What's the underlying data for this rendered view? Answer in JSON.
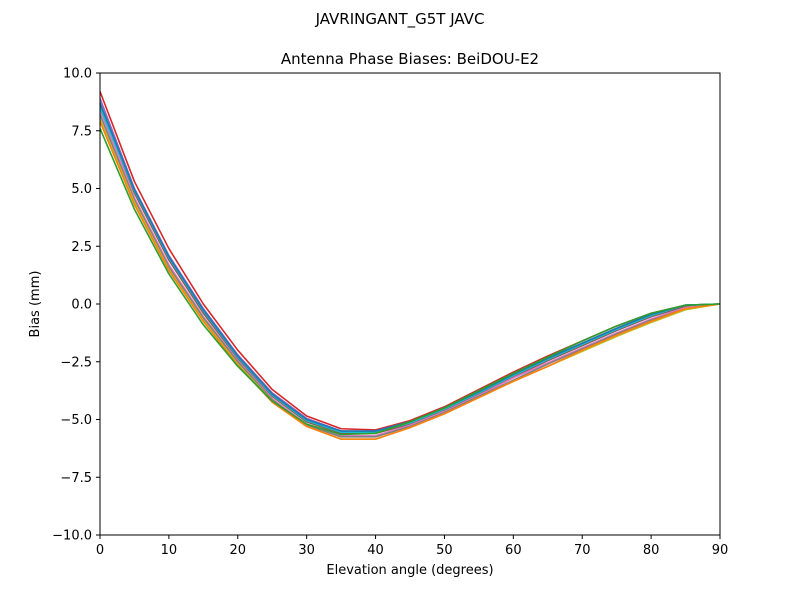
{
  "chart_data": {
    "type": "line",
    "suptitle": "JAVRINGANT_G5T  JAVC",
    "title": "Antenna Phase Biases: BeiDOU-E2",
    "xlabel": "Elevation angle (degrees)",
    "ylabel": "Bias (mm)",
    "xlim": [
      0,
      90
    ],
    "ylim": [
      -10,
      10
    ],
    "xticks": [
      0,
      10,
      20,
      30,
      40,
      50,
      60,
      70,
      80,
      90
    ],
    "yticks": [
      -10.0,
      -7.5,
      -5.0,
      -2.5,
      0.0,
      2.5,
      5.0,
      7.5,
      10.0
    ],
    "xtick_labels": [
      "0",
      "10",
      "20",
      "30",
      "40",
      "50",
      "60",
      "70",
      "80",
      "90"
    ],
    "ytick_labels": [
      "−10.0",
      "−7.5",
      "−5.0",
      "−2.5",
      "0.0",
      "2.5",
      "5.0",
      "7.5",
      "10.0"
    ],
    "grid": false,
    "x": [
      0,
      5,
      10,
      15,
      20,
      25,
      30,
      35,
      40,
      45,
      50,
      55,
      60,
      65,
      70,
      75,
      80,
      85,
      90
    ],
    "series": [
      {
        "color": "#d62728",
        "values": [
          9.2,
          5.3,
          2.4,
          0.0,
          -2.0,
          -3.7,
          -4.85,
          -5.4,
          -5.45,
          -5.05,
          -4.45,
          -3.7,
          -2.95,
          -2.25,
          -1.6,
          -0.95,
          -0.4,
          -0.05,
          0.0
        ]
      },
      {
        "color": "#9467bd",
        "values": [
          8.9,
          5.0,
          2.1,
          -0.2,
          -2.2,
          -3.85,
          -4.95,
          -5.5,
          -5.5,
          -5.1,
          -4.5,
          -3.8,
          -3.05,
          -2.35,
          -1.7,
          -1.05,
          -0.45,
          -0.05,
          0.0
        ]
      },
      {
        "color": "#8c564b",
        "values": [
          8.6,
          4.8,
          1.9,
          -0.4,
          -2.35,
          -4.0,
          -5.1,
          -5.6,
          -5.6,
          -5.2,
          -4.6,
          -3.9,
          -3.15,
          -2.45,
          -1.8,
          -1.15,
          -0.55,
          -0.1,
          0.0
        ]
      },
      {
        "color": "#e377c2",
        "values": [
          8.4,
          4.6,
          1.7,
          -0.55,
          -2.45,
          -4.1,
          -5.2,
          -5.7,
          -5.7,
          -5.25,
          -4.65,
          -3.95,
          -3.2,
          -2.55,
          -1.9,
          -1.25,
          -0.65,
          -0.15,
          0.0
        ]
      },
      {
        "color": "#7f7f7f",
        "values": [
          8.2,
          4.5,
          1.6,
          -0.6,
          -2.5,
          -4.15,
          -5.25,
          -5.75,
          -5.75,
          -5.3,
          -4.7,
          -4.0,
          -3.3,
          -2.6,
          -1.95,
          -1.3,
          -0.7,
          -0.2,
          0.0
        ]
      },
      {
        "color": "#bcbd22",
        "values": [
          8.0,
          4.4,
          1.5,
          -0.7,
          -2.6,
          -4.2,
          -5.3,
          -5.85,
          -5.85,
          -5.35,
          -4.75,
          -4.05,
          -3.35,
          -2.7,
          -2.05,
          -1.4,
          -0.8,
          -0.25,
          0.0
        ]
      },
      {
        "color": "#17becf",
        "values": [
          8.5,
          4.9,
          2.0,
          -0.3,
          -2.3,
          -3.95,
          -5.05,
          -5.55,
          -5.55,
          -5.15,
          -4.55,
          -3.85,
          -3.1,
          -2.4,
          -1.75,
          -1.1,
          -0.5,
          -0.05,
          0.0
        ]
      },
      {
        "color": "#1f77b4",
        "values": [
          8.7,
          4.95,
          2.05,
          -0.25,
          -2.25,
          -3.9,
          -5.0,
          -5.5,
          -5.5,
          -5.1,
          -4.5,
          -3.8,
          -3.05,
          -2.35,
          -1.7,
          -1.05,
          -0.45,
          -0.05,
          0.0
        ]
      },
      {
        "color": "#ff7f0e",
        "values": [
          7.9,
          4.3,
          1.45,
          -0.75,
          -2.65,
          -4.25,
          -5.3,
          -5.85,
          -5.85,
          -5.35,
          -4.75,
          -4.05,
          -3.35,
          -2.7,
          -2.0,
          -1.35,
          -0.75,
          -0.2,
          0.0
        ]
      },
      {
        "color": "#2ca02c",
        "values": [
          7.6,
          4.1,
          1.3,
          -0.9,
          -2.7,
          -4.2,
          -5.2,
          -5.65,
          -5.6,
          -5.1,
          -4.5,
          -3.75,
          -3.0,
          -2.3,
          -1.6,
          -0.95,
          -0.4,
          -0.05,
          0.0
        ]
      }
    ]
  }
}
